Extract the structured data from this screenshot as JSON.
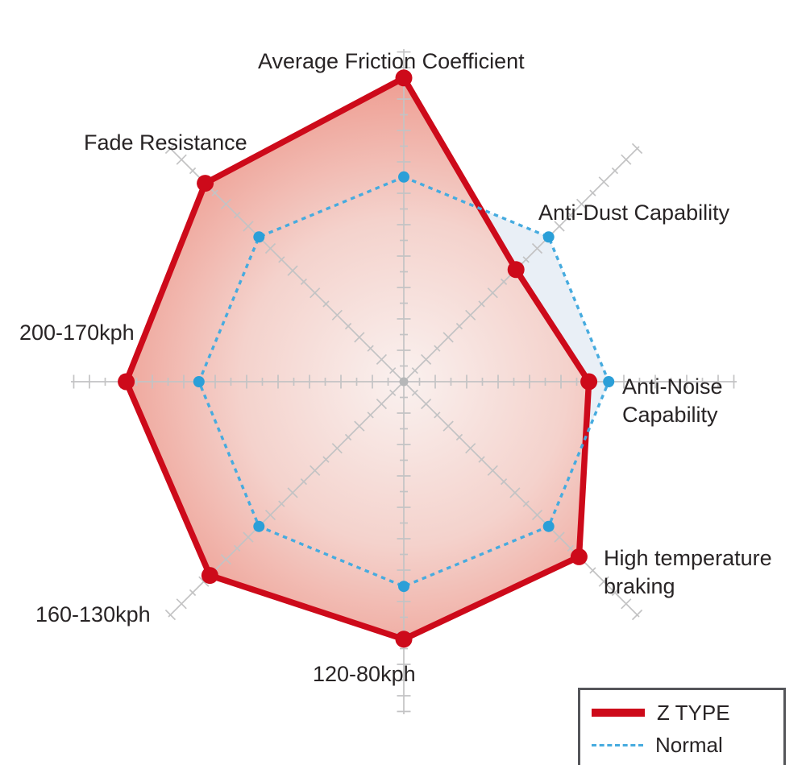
{
  "chart_data": {
    "type": "radar",
    "title": "",
    "categories": [
      "Average Friction Coefficient",
      "Anti-Dust Capability",
      "Anti-Noise Capability",
      "High temperature braking",
      "120-80kph",
      "160-130kph",
      "200-170kph",
      "Fade Resistance"
    ],
    "axis_labels_display": [
      "Average Friction Coefficient",
      "Anti-Dust Capability",
      "Anti-Noise\nCapability",
      "High temperature\nbraking",
      "120-80kph",
      "160-130kph",
      "200-170kph",
      "Fade Resistance"
    ],
    "axes_count": 8,
    "scale_max": 10,
    "ylim": [
      0,
      10
    ],
    "start_angle_deg": -90,
    "clockwise": true,
    "grid": {
      "style": "spoke-axes-with-alternating-tick-marks",
      "ring_lines": false,
      "axis_color": "#c3c3c4",
      "center_dot_color": "#b6b7b8"
    },
    "series": [
      {
        "name": "Z TYPE",
        "values": [
          9.2,
          4.8,
          5.6,
          7.5,
          7.8,
          8.3,
          8.4,
          8.5
        ],
        "line_color": "#cd0a1a",
        "line_style": "solid",
        "line_width": 7.5,
        "marker_color": "#cd0a1a",
        "fill_center": "#faf1ef",
        "fill_mid": "#f4d2cc",
        "fill_edge": "#ee9a8e"
      },
      {
        "name": "Normal",
        "values": [
          6.2,
          6.2,
          6.2,
          6.2,
          6.2,
          6.2,
          6.2,
          6.2
        ],
        "line_color": "#46abdf",
        "line_style": "dashed",
        "line_width": 3.4,
        "marker_color": "#2b9fd8",
        "fill": "#e9eff6"
      }
    ],
    "legend_position": "bottom-right"
  }
}
